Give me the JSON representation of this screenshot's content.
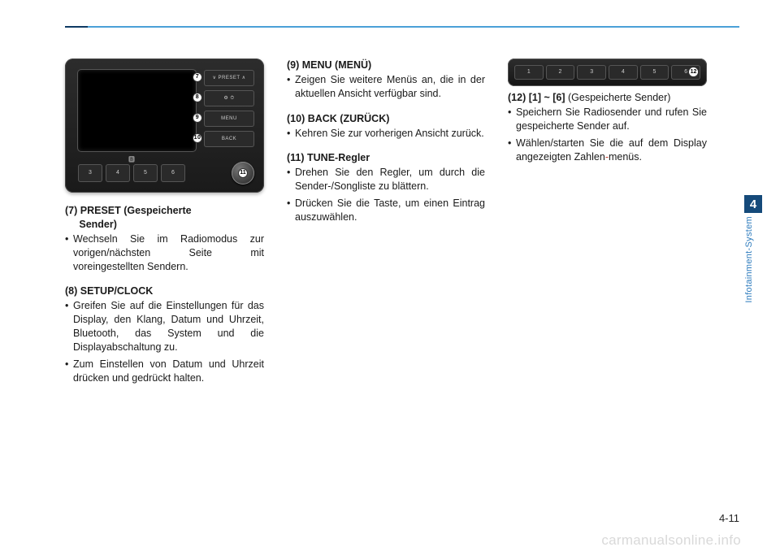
{
  "colors": {
    "rule_light": "#4aa0d8",
    "rule_dark": "#0e3a63",
    "tab_num_bg": "#154a7a",
    "tab_label": "#2d7bbd",
    "text": "#1a1a1a",
    "watermark": "#d9d9d9"
  },
  "radio": {
    "right_buttons": [
      {
        "label": "∨ PRESET ∧",
        "callout": "7"
      },
      {
        "label": "⚙ ⏱",
        "callout": "8"
      },
      {
        "label": "MENU",
        "callout": "9"
      },
      {
        "label": "BACK",
        "callout": "10"
      }
    ],
    "bottom_presets": [
      "3",
      "4",
      "5",
      "6"
    ],
    "knob_callout": "11",
    "bt": "🅱"
  },
  "preset_bar": {
    "buttons": [
      "1",
      "2",
      "3",
      "4",
      "5",
      "6"
    ],
    "callout": "12"
  },
  "col1": {
    "s7": {
      "head": "(7) PRESET (Gespeicherte Sender)",
      "b1": "Wechseln Sie im Radiomodus zur vorigen/nächsten Seite mit voreingestellten Sendern."
    },
    "s8": {
      "head": "(8) SETUP/CLOCK",
      "b1": "Greifen Sie auf die Einstellungen für das Display, den Klang, Datum und Uhrzeit, Bluetooth, das System und die Displayabschaltung zu.",
      "b2": "Zum Einstellen von Datum und Uhrzeit drücken und gedrückt halten."
    }
  },
  "col2": {
    "s9": {
      "head": "(9) MENU (MENÜ)",
      "b1": "Zeigen Sie weitere Menüs an, die in der aktuellen Ansicht verfügbar sind."
    },
    "s10": {
      "head": "(10) BACK (ZURÜCK)",
      "b1": "Kehren Sie zur vorherigen Ansicht zurück."
    },
    "s11": {
      "head_pre": "(11) ",
      "head_bold": "TUNE",
      "head_post": "-Regler",
      "b1": "Drehen Sie den Regler, um durch die Sender-/Songliste zu blättern.",
      "b2": "Drücken Sie die Taste, um einen Eintrag auszuwählen."
    }
  },
  "col3": {
    "s12": {
      "head_pre": "(12) ",
      "head_bold": "[1] ~ [6]",
      "head_post": " (Gespeicherte Sender)",
      "b1": "Speichern Sie Radiosender und rufen Sie gespeicherte Sender auf.",
      "b2_pre": "Wählen/starten Sie die auf dem Display angezeigten Zahlen",
      "b2_hyph": "-",
      "b2_post": "menüs."
    }
  },
  "tab": {
    "num": "4",
    "label": "Infotainment-System"
  },
  "page_num": "4-11",
  "watermark": "carmanualsonline.info"
}
